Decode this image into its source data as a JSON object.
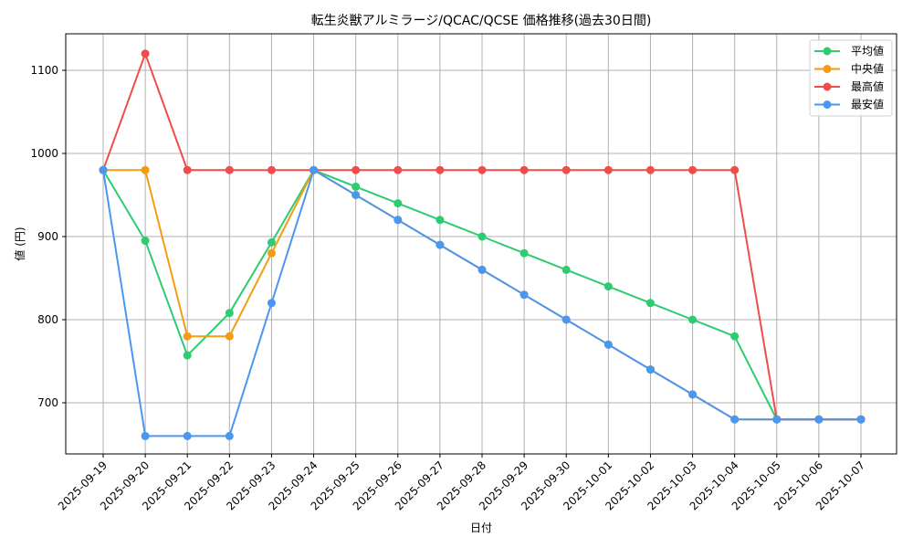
{
  "chart_data": {
    "type": "line",
    "title": "転生炎獣アルミラージ/QCAC/QCSE 価格推移(過去30日間)",
    "xlabel": "日付",
    "ylabel": "値 (円)",
    "x": [
      "2025-09-19",
      "2025-09-20",
      "2025-09-21",
      "2025-09-22",
      "2025-09-23",
      "2025-09-24",
      "2025-09-25",
      "2025-09-26",
      "2025-09-27",
      "2025-09-28",
      "2025-09-29",
      "2025-09-30",
      "2025-10-01",
      "2025-10-02",
      "2025-10-03",
      "2025-10-04",
      "2025-10-05",
      "2025-10-06",
      "2025-10-07"
    ],
    "yticks": [
      700,
      800,
      900,
      1000,
      1100
    ],
    "ylim": [
      640,
      1145
    ],
    "grid": true,
    "legend_position": "upper right",
    "series": [
      {
        "name": "平均値",
        "color": "#2ecc71",
        "values": [
          980,
          895,
          757,
          808,
          893,
          980,
          960,
          940,
          920,
          900,
          880,
          860,
          840,
          820,
          800,
          780,
          680,
          680,
          680
        ]
      },
      {
        "name": "中央値",
        "color": "#f39c12",
        "values": [
          980,
          980,
          780,
          780,
          880,
          980,
          950,
          920,
          890,
          860,
          830,
          800,
          770,
          740,
          710,
          680,
          680,
          680,
          680
        ]
      },
      {
        "name": "最高値",
        "color": "#ef4c4c",
        "values": [
          980,
          1120,
          980,
          980,
          980,
          980,
          980,
          980,
          980,
          980,
          980,
          980,
          980,
          980,
          980,
          980,
          680,
          680,
          680
        ]
      },
      {
        "name": "最安値",
        "color": "#4a97f0",
        "values": [
          980,
          660,
          660,
          660,
          820,
          980,
          950,
          920,
          890,
          860,
          830,
          800,
          770,
          740,
          710,
          680,
          680,
          680,
          680
        ]
      }
    ]
  }
}
